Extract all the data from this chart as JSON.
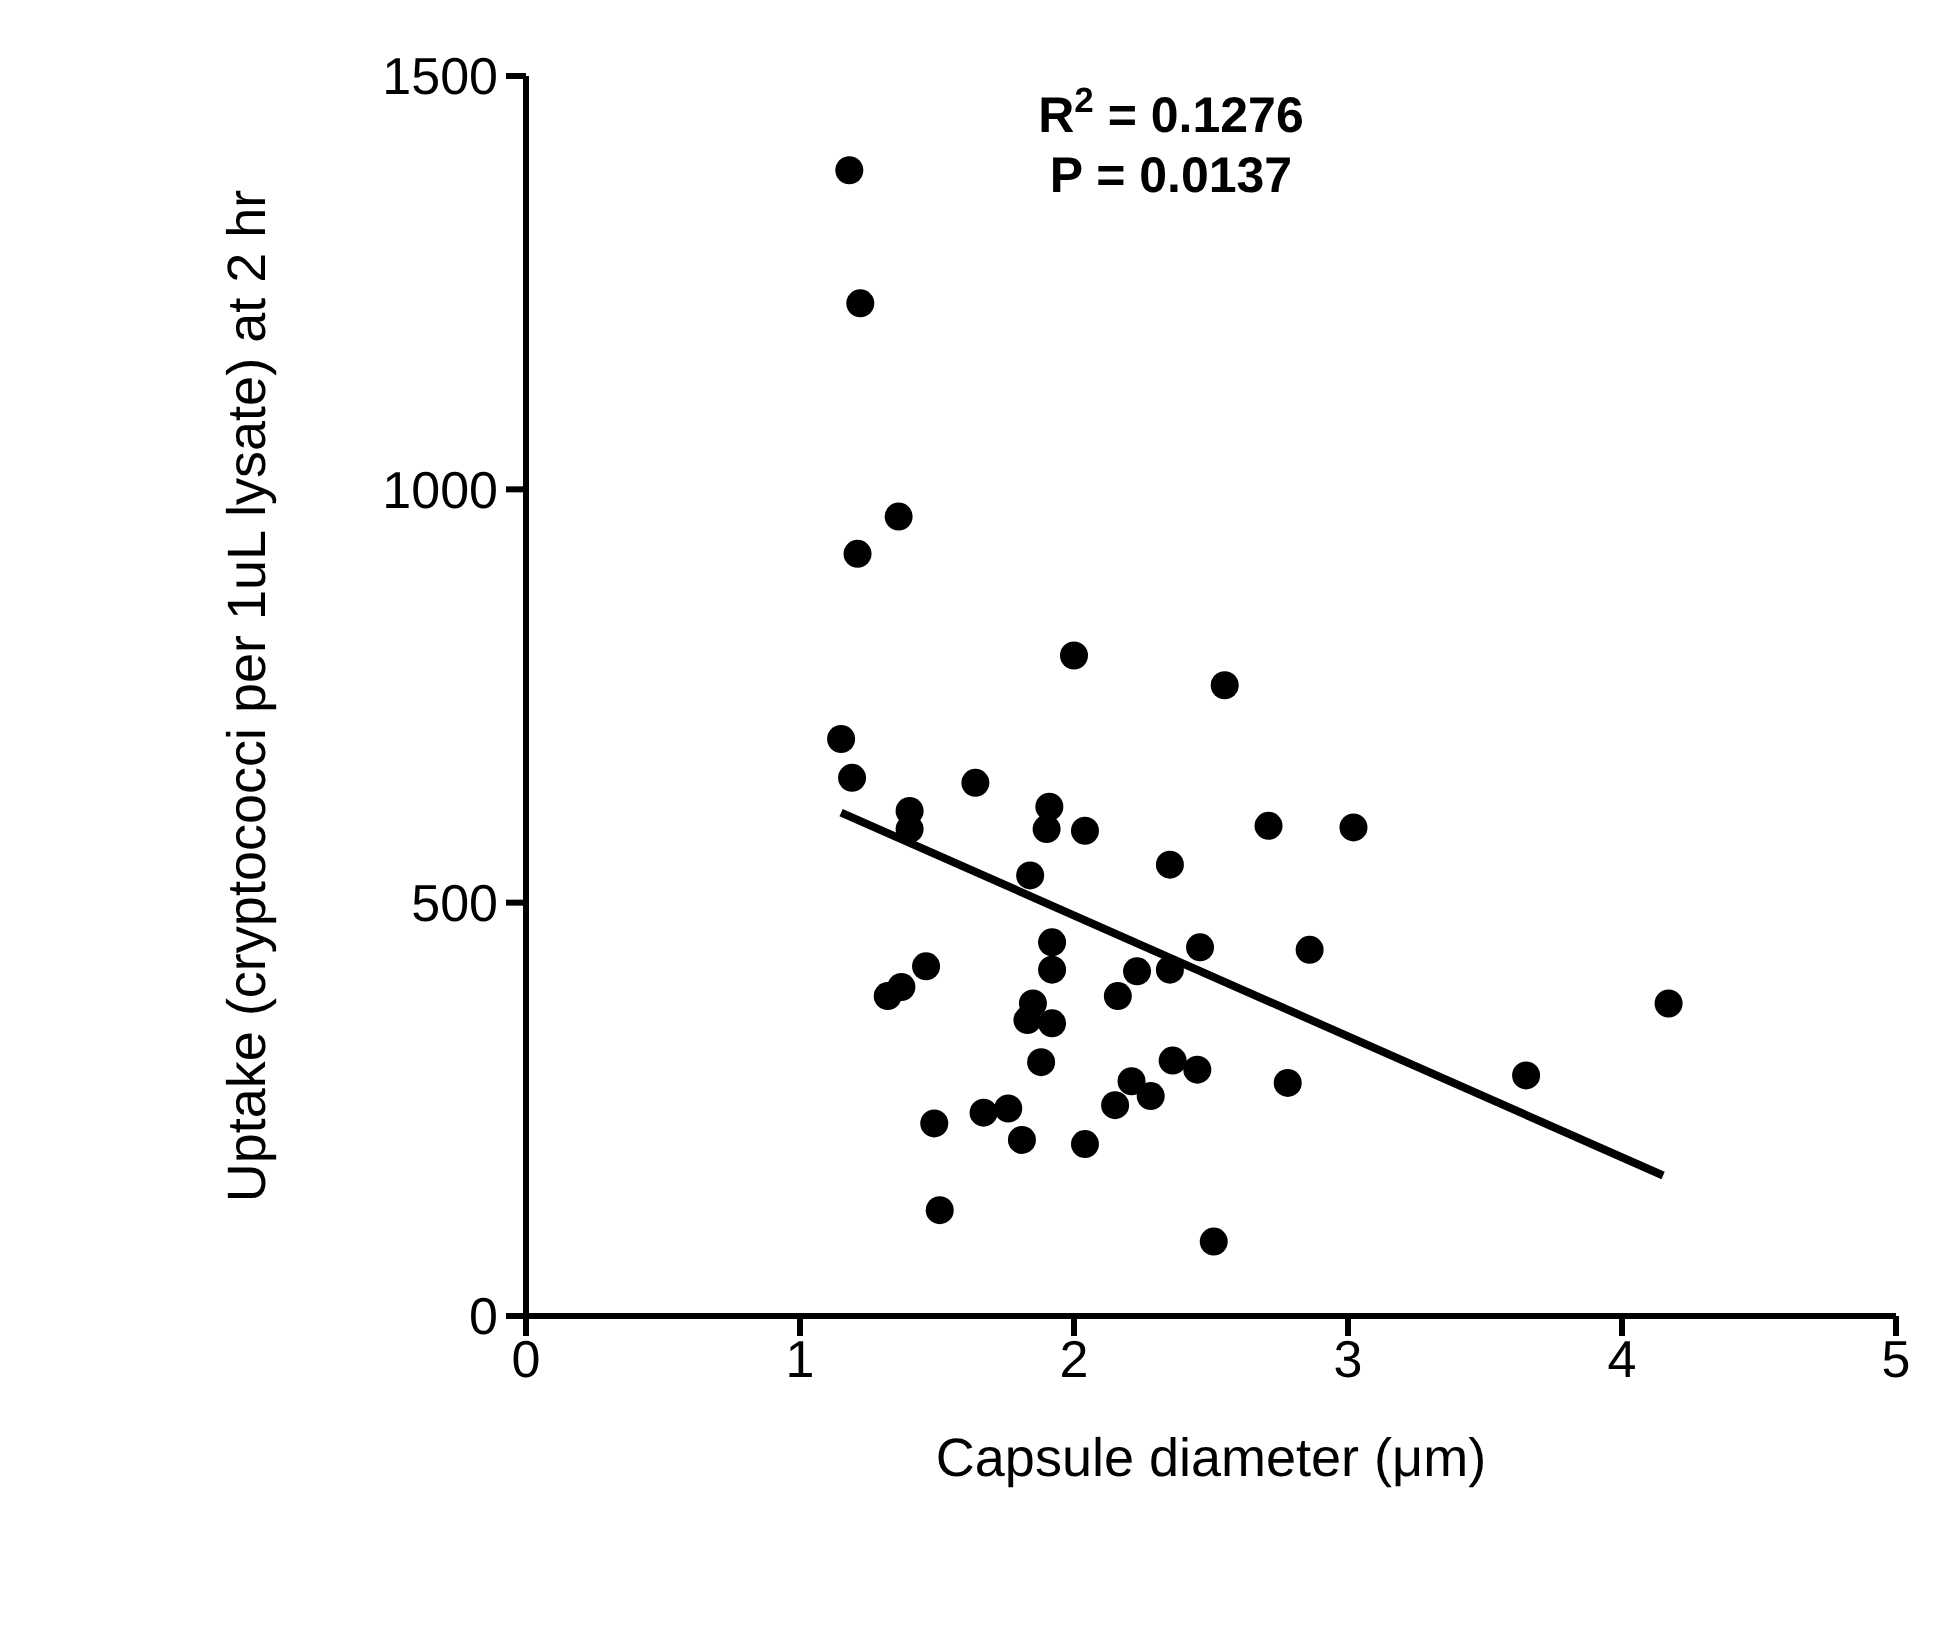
{
  "chart_data": {
    "type": "scatter",
    "xlabel": "Capsule diameter (μm)",
    "ylabel": "Uptake (cryptococci per 1uL lysate) at 2 hr",
    "annotations": [
      "R$^{2}$ = 0.1276",
      "P = 0.0137"
    ],
    "xlim": [
      0,
      5
    ],
    "xticks": [
      0,
      1,
      2,
      3,
      4,
      5
    ],
    "ylim": [
      0,
      1500
    ],
    "yticks": [
      0,
      500,
      1000,
      1500
    ],
    "marker": "circle",
    "series": [
      {
        "color": "#000000",
        "x": [
          1.18,
          1.22,
          1.36,
          1.21,
          2.0,
          1.15,
          1.19,
          1.64,
          1.4,
          1.4,
          1.91,
          1.9,
          2.04,
          2.71,
          2.35,
          1.84,
          1.92,
          1.92,
          1.46,
          2.46,
          2.23,
          2.35,
          1.37,
          1.32,
          2.16,
          1.85,
          1.83,
          1.92,
          1.88,
          2.36,
          2.45,
          2.78,
          2.21,
          2.28,
          2.15,
          1.67,
          1.76,
          1.49,
          1.81,
          2.04,
          1.51,
          2.51,
          2.55,
          3.02,
          2.86,
          4.17,
          3.65
        ],
        "values": [
          1386,
          1225,
          967,
          922,
          799,
          698,
          651,
          645,
          611,
          589,
          616,
          589,
          587,
          593,
          546,
          533,
          452,
          419,
          423,
          446,
          417,
          419,
          398,
          387,
          387,
          378,
          358,
          354,
          307,
          309,
          298,
          282,
          284,
          266,
          255,
          246,
          251,
          233,
          213,
          208,
          128,
          90,
          763,
          591,
          443,
          378,
          291
        ]
      },
      {
        "type": "line",
        "color": "#000000",
        "marker": "none",
        "line_style": "solid",
        "x": [
          1.15,
          4.15
        ],
        "values": [
          609,
          170
        ]
      }
    ]
  }
}
